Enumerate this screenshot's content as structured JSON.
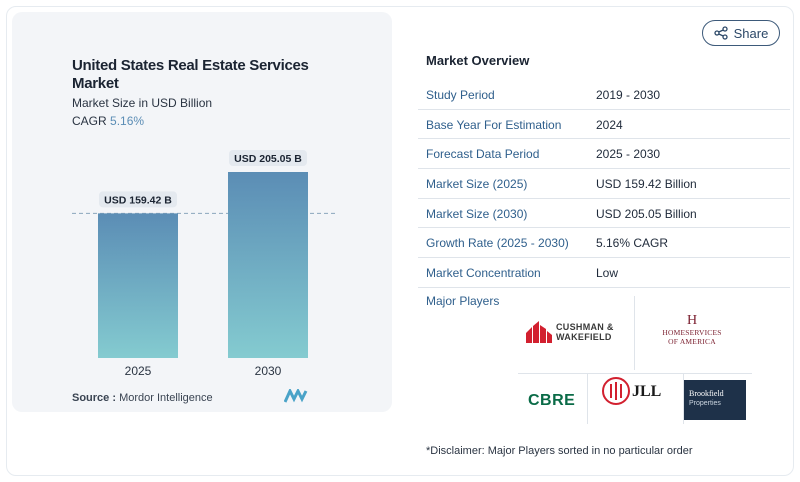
{
  "chart": {
    "title": "United States Real Estate Services Market",
    "subtitle": "Market Size in USD Billion",
    "cagr_label": "CAGR",
    "cagr_value": "5.16%",
    "source_label": "Source :",
    "source_value": "Mordor Intelligence"
  },
  "chart_data": {
    "type": "bar",
    "title": "United States Real Estate Services Market",
    "ylabel": "Market Size in USD Billion",
    "categories": [
      "2025",
      "2030"
    ],
    "values": [
      159.42,
      205.05
    ],
    "data_labels": [
      "USD 159.42 B",
      "USD 205.05 B"
    ],
    "grid": false,
    "colors": {
      "bar_top": "#5b8db5",
      "bar_bottom": "#84cbd0"
    }
  },
  "share": {
    "label": "Share",
    "icon": "share-icon"
  },
  "overview": {
    "title": "Market Overview",
    "rows": [
      {
        "key": "Study Period",
        "value": "2019 - 2030"
      },
      {
        "key": "Base Year For Estimation",
        "value": "2024"
      },
      {
        "key": "Forecast Data Period",
        "value": "2025 - 2030"
      },
      {
        "key": "Market Size (2025)",
        "value": "USD 159.42 Billion"
      },
      {
        "key": "Market Size (2030)",
        "value": "USD 205.05 Billion"
      },
      {
        "key": "Growth Rate (2025 - 2030)",
        "value": "5.16% CAGR"
      },
      {
        "key": "Market Concentration",
        "value": "Low"
      }
    ]
  },
  "players": {
    "label": "Major Players",
    "cushman": "CUSHMAN & WAKEFIELD",
    "homeservices": "HOMESERVICES OF AMERICA",
    "cbre": "CBRE",
    "jll": "JLL",
    "brookfield": "Brookfield",
    "brookfield_sub": "Properties"
  },
  "disclaimer": "*Disclaimer: Major Players sorted in no particular order"
}
